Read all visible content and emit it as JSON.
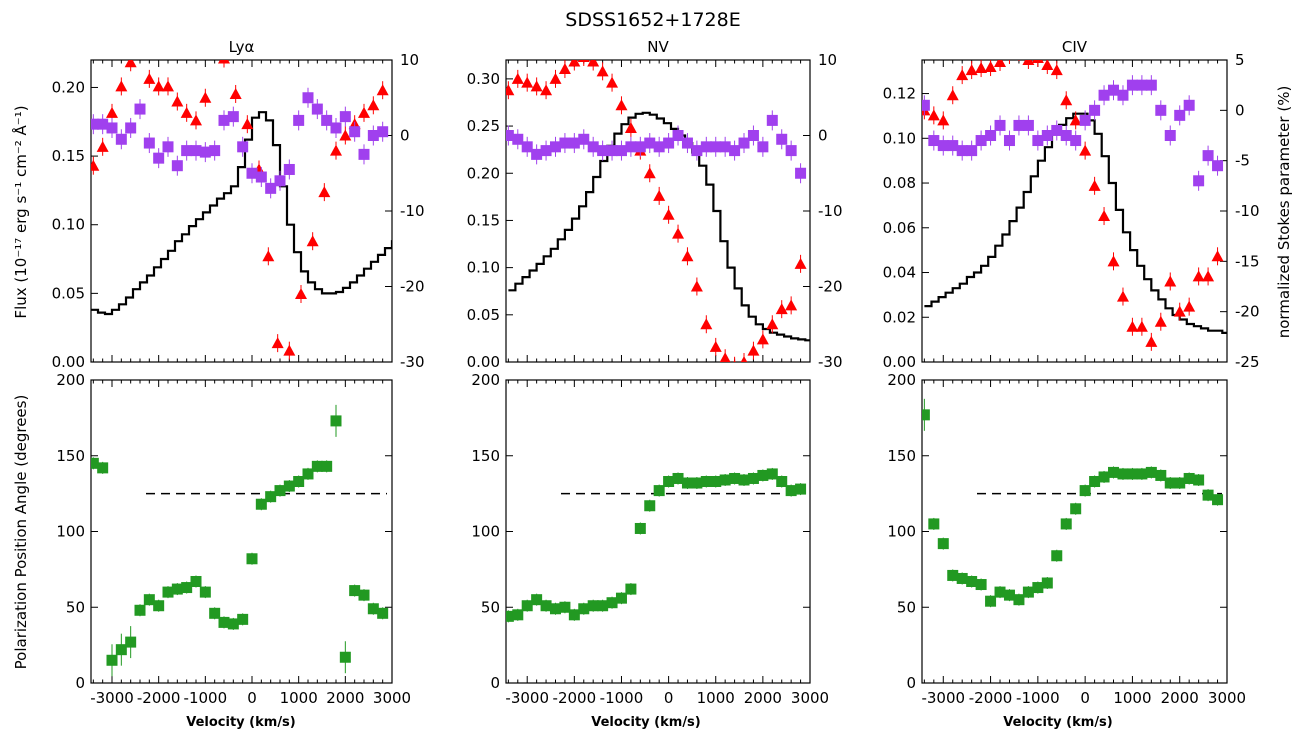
{
  "figure": {
    "title": "SDSS1652+1728E",
    "left_ylabel_flux": "Flux (10⁻¹⁷ erg s⁻¹ cm⁻² Å⁻¹)",
    "left_ylabel_pa": "Polarization Position Angle (degrees)",
    "right_ylabel": "normalized Stokes parameter (%)",
    "xlabel": "Velocity (km/s)"
  },
  "colors": {
    "stokes_q": "#ff0000",
    "stokes_u": "#a040ee",
    "angle": "#229922",
    "flux": "#000000"
  },
  "chart_data": [
    {
      "type": "line",
      "panel": "flux-lya",
      "title": "Lyα",
      "xlim": [
        -3450,
        3000
      ],
      "ylim": [
        0,
        0.22
      ],
      "y2lim": [
        -30,
        10
      ],
      "xticks": [
        -3000,
        -2000,
        -1000,
        0,
        1000,
        2000,
        3000
      ],
      "xticklabels": [
        "-3000",
        "-2000",
        "-1000",
        "0",
        "1000",
        "2000",
        "3000"
      ],
      "yticks": [
        0,
        0.05,
        0.1,
        0.15,
        0.2
      ],
      "yticklabels": [
        "0.00",
        "0.05",
        "0.10",
        "0.15",
        "0.20"
      ],
      "y2ticks": [
        -30,
        -20,
        -10,
        0,
        10
      ],
      "y2ticklabels": [
        "-30",
        "-20",
        "-10",
        "0",
        "10"
      ],
      "flux": {
        "x": [
          -3450,
          -3300,
          -3150,
          -3000,
          -2850,
          -2700,
          -2550,
          -2400,
          -2250,
          -2100,
          -1950,
          -1800,
          -1650,
          -1500,
          -1350,
          -1200,
          -1050,
          -900,
          -750,
          -600,
          -450,
          -300,
          -150,
          0,
          150,
          300,
          450,
          600,
          750,
          900,
          1050,
          1200,
          1350,
          1500,
          1650,
          1800,
          1950,
          2100,
          2250,
          2400,
          2550,
          2700,
          2850,
          3000
        ],
        "y": [
          0.038,
          0.036,
          0.035,
          0.038,
          0.042,
          0.047,
          0.053,
          0.058,
          0.063,
          0.069,
          0.075,
          0.081,
          0.088,
          0.093,
          0.099,
          0.104,
          0.109,
          0.114,
          0.119,
          0.123,
          0.128,
          0.142,
          0.162,
          0.178,
          0.182,
          0.176,
          0.158,
          0.128,
          0.1,
          0.08,
          0.066,
          0.058,
          0.053,
          0.05,
          0.05,
          0.051,
          0.054,
          0.058,
          0.063,
          0.068,
          0.073,
          0.078,
          0.083,
          0.088
        ]
      },
      "stokes_q": {
        "x": [
          -3400,
          -3200,
          -3000,
          -2800,
          -2600,
          -2400,
          -2200,
          -2000,
          -1800,
          -1600,
          -1400,
          -1200,
          -1000,
          -600,
          -350,
          -100,
          150,
          350,
          550,
          800,
          1050,
          1300,
          1550,
          1800,
          2000,
          2200,
          2400,
          2600,
          2800
        ],
        "y": [
          -4,
          -1.5,
          3,
          6.5,
          9.7,
          12,
          7.5,
          6.5,
          6.5,
          4.5,
          3,
          2,
          5,
          10.2,
          5.5,
          1.5,
          -4.5,
          -16,
          -27.5,
          -28.5,
          -21,
          -14,
          -7.5,
          -2,
          0,
          1.5,
          3,
          4,
          6
        ]
      },
      "stokes_u": {
        "x": [
          -3400,
          -3200,
          -3000,
          -2800,
          -2600,
          -2400,
          -2200,
          -2000,
          -1800,
          -1600,
          -1400,
          -1200,
          -1000,
          -800,
          -600,
          -400,
          -200,
          0,
          200,
          400,
          600,
          800,
          1000,
          1200,
          1400,
          1600,
          1800,
          2000,
          2200,
          2400,
          2600,
          2800
        ],
        "y": [
          1.5,
          1.5,
          1,
          -0.5,
          1,
          3.5,
          -1,
          -3,
          -1.5,
          -4,
          -2,
          -2,
          -2.2,
          -2,
          2,
          2.5,
          -1.5,
          -5,
          -5.5,
          -7,
          -6,
          -4.5,
          2,
          5,
          3.5,
          2,
          1,
          2.5,
          0.5,
          -2.5,
          0,
          0.5
        ]
      },
      "ref_line": null
    },
    {
      "type": "line",
      "panel": "flux-nv",
      "title": "NV",
      "xlim": [
        -3450,
        3000
      ],
      "ylim": [
        0,
        0.32
      ],
      "y2lim": [
        -30,
        10
      ],
      "xticks": [
        -3000,
        -2000,
        -1000,
        0,
        1000,
        2000,
        3000
      ],
      "xticklabels": [
        "-3000",
        "-2000",
        "-1000",
        "0",
        "1000",
        "2000",
        "3000"
      ],
      "yticks": [
        0,
        0.05,
        0.1,
        0.15,
        0.2,
        0.25,
        0.3
      ],
      "yticklabels": [
        "0.00",
        "0.05",
        "0.10",
        "0.15",
        "0.20",
        "0.25",
        "0.30"
      ],
      "y2ticks": [
        -30,
        -20,
        -10,
        0,
        10
      ],
      "y2ticklabels": [
        "-30",
        "-20",
        "-10",
        "0",
        "10"
      ],
      "flux": {
        "x": [
          -3400,
          -3250,
          -3100,
          -2950,
          -2800,
          -2650,
          -2500,
          -2350,
          -2200,
          -2050,
          -1900,
          -1750,
          -1600,
          -1450,
          -1300,
          -1150,
          -1000,
          -850,
          -700,
          -550,
          -400,
          -250,
          -100,
          50,
          200,
          350,
          500,
          650,
          800,
          950,
          1100,
          1250,
          1400,
          1550,
          1700,
          1850,
          2000,
          2150,
          2300,
          2450,
          2600,
          2750,
          2900,
          3000
        ],
        "y": [
          0.076,
          0.083,
          0.09,
          0.097,
          0.104,
          0.112,
          0.12,
          0.13,
          0.14,
          0.152,
          0.165,
          0.18,
          0.196,
          0.213,
          0.229,
          0.242,
          0.252,
          0.259,
          0.263,
          0.264,
          0.262,
          0.258,
          0.253,
          0.247,
          0.24,
          0.232,
          0.222,
          0.208,
          0.188,
          0.16,
          0.128,
          0.1,
          0.078,
          0.06,
          0.048,
          0.04,
          0.035,
          0.031,
          0.029,
          0.027,
          0.025,
          0.024,
          0.023,
          0.023
        ]
      },
      "stokes_q": {
        "x": [
          -3400,
          -3200,
          -3000,
          -2800,
          -2600,
          -2400,
          -2200,
          -2000,
          -1800,
          -1600,
          -1400,
          -1200,
          -1000,
          -800,
          -600,
          -400,
          -200,
          0,
          200,
          400,
          600,
          800,
          1000,
          1200,
          1400,
          1600,
          1800,
          2000,
          2200,
          2400,
          2600,
          2800
        ],
        "y": [
          6,
          7.5,
          7,
          6.5,
          6,
          7.5,
          8.8,
          9.8,
          10.4,
          9.8,
          8.5,
          7,
          4,
          1,
          -2,
          -5,
          -8,
          -10.5,
          -13,
          -16,
          -20,
          -25,
          -28,
          -29.5,
          -30.5,
          -30,
          -28.5,
          -27,
          -25,
          -23,
          -22.5,
          -17
        ]
      },
      "stokes_u": {
        "x": [
          -3400,
          -3200,
          -3000,
          -2800,
          -2600,
          -2400,
          -2200,
          -2000,
          -1800,
          -1600,
          -1400,
          -1200,
          -1000,
          -800,
          -600,
          -400,
          -200,
          0,
          200,
          400,
          600,
          800,
          1000,
          1200,
          1400,
          1600,
          1800,
          2000,
          2200,
          2400,
          2600,
          2800
        ],
        "y": [
          0,
          -0.5,
          -1.5,
          -2.5,
          -2,
          -1.5,
          -1,
          -1,
          -0.5,
          -1.5,
          -2,
          -2,
          -2,
          -1.5,
          -1.5,
          -1,
          -1.5,
          -1,
          0,
          -1,
          -2,
          -1.5,
          -1.5,
          -1.5,
          -2,
          -1,
          0,
          -1.5,
          2,
          -0.5,
          -2,
          -5
        ]
      },
      "ref_line": null
    },
    {
      "type": "line",
      "panel": "flux-civ",
      "title": "CIV",
      "xlim": [
        -3450,
        3000
      ],
      "ylim": [
        0,
        0.135
      ],
      "y2lim": [
        -25,
        5
      ],
      "xticks": [
        -3000,
        -2000,
        -1000,
        0,
        1000,
        2000,
        3000
      ],
      "xticklabels": [
        "-3000",
        "-2000",
        "-1000",
        "0",
        "1000",
        "2000",
        "3000"
      ],
      "yticks": [
        0,
        0.02,
        0.04,
        0.06,
        0.08,
        0.1,
        0.12
      ],
      "yticklabels": [
        "0.00",
        "0.02",
        "0.04",
        "0.06",
        "0.08",
        "0.10",
        "0.12"
      ],
      "y2ticks": [
        -25,
        -20,
        -15,
        -10,
        -5,
        0,
        5
      ],
      "y2ticklabels": [
        "-25",
        "-20",
        "-15",
        "-10",
        "-5",
        "0",
        "5"
      ],
      "flux": {
        "x": [
          -3400,
          -3250,
          -3100,
          -2950,
          -2800,
          -2650,
          -2500,
          -2350,
          -2200,
          -2050,
          -1900,
          -1750,
          -1600,
          -1450,
          -1300,
          -1150,
          -1000,
          -850,
          -700,
          -550,
          -400,
          -250,
          -100,
          50,
          200,
          350,
          500,
          650,
          800,
          950,
          1100,
          1250,
          1400,
          1550,
          1700,
          1850,
          2000,
          2150,
          2300,
          2450,
          2600,
          2750,
          2900,
          3000
        ],
        "y": [
          0.025,
          0.027,
          0.029,
          0.031,
          0.033,
          0.035,
          0.038,
          0.04,
          0.043,
          0.047,
          0.052,
          0.057,
          0.063,
          0.069,
          0.076,
          0.083,
          0.09,
          0.096,
          0.102,
          0.106,
          0.109,
          0.111,
          0.111,
          0.108,
          0.102,
          0.092,
          0.08,
          0.068,
          0.058,
          0.05,
          0.043,
          0.037,
          0.032,
          0.028,
          0.024,
          0.021,
          0.019,
          0.017,
          0.016,
          0.015,
          0.014,
          0.014,
          0.013,
          0.013
        ]
      },
      "stokes_q": {
        "x": [
          -3400,
          -3200,
          -3000,
          -2800,
          -2600,
          -2400,
          -2200,
          -2000,
          -1800,
          -1600,
          -1400,
          -1200,
          -1000,
          -800,
          -600,
          -400,
          -200,
          0,
          200,
          400,
          600,
          800,
          1000,
          1200,
          1400,
          1600,
          1800,
          2000,
          2200,
          2400,
          2600,
          2800
        ],
        "y": [
          0,
          -0.5,
          -1,
          1.5,
          3.5,
          4,
          4.2,
          4.3,
          4.8,
          5.5,
          5.8,
          5,
          5.2,
          4.5,
          4,
          1,
          -1,
          -4,
          -7.5,
          -10.5,
          -15,
          -18.5,
          -21.5,
          -21.5,
          -23,
          -21,
          -17,
          -20,
          -19.5,
          -16.5,
          -16.5,
          -14.5
        ]
      },
      "stokes_u": {
        "x": [
          -3400,
          -3200,
          -3000,
          -2800,
          -2600,
          -2400,
          -2200,
          -2000,
          -1800,
          -1600,
          -1400,
          -1200,
          -1000,
          -800,
          -600,
          -400,
          -200,
          0,
          200,
          400,
          600,
          800,
          1000,
          1200,
          1400,
          1600,
          1800,
          2000,
          2200,
          2400,
          2600,
          2800
        ],
        "y": [
          0.5,
          -3,
          -3.5,
          -3.5,
          -4,
          -4,
          -3,
          -2.5,
          -1.5,
          -3,
          -1.5,
          -1.5,
          -3,
          -2.5,
          -2,
          -2.5,
          -3,
          -1,
          0,
          1.5,
          2,
          1.5,
          2.5,
          2.5,
          2.5,
          0,
          -2.5,
          -0.5,
          0.5,
          -7,
          -4.5,
          -5.5
        ]
      },
      "ref_line": null
    },
    {
      "type": "scatter",
      "panel": "angle-lya",
      "xlim": [
        -3450,
        3000
      ],
      "ylim": [
        0,
        200
      ],
      "xticks": [
        -3000,
        -2000,
        -1000,
        0,
        1000,
        2000,
        3000
      ],
      "xticklabels": [
        "-3000",
        "-2000",
        "-1000",
        "0",
        "1000",
        "2000",
        "3000"
      ],
      "yticks": [
        0,
        50,
        100,
        150,
        200
      ],
      "yticklabels": [
        "0",
        "50",
        "100",
        "150",
        "200"
      ],
      "angle": {
        "x": [
          -3400,
          -3200,
          -3000,
          -2800,
          -2600,
          -2400,
          -2200,
          -2000,
          -1800,
          -1600,
          -1400,
          -1200,
          -1000,
          -800,
          -600,
          -400,
          -200,
          0,
          200,
          400,
          600,
          800,
          1000,
          1200,
          1400,
          1600,
          1800,
          2000,
          2200,
          2400,
          2600,
          2800
        ],
        "y": [
          145,
          142,
          15,
          22,
          27,
          48,
          55,
          51,
          60,
          62,
          63,
          67,
          60,
          46,
          40,
          39,
          42,
          82,
          118,
          123,
          127,
          130,
          133,
          138,
          143,
          143,
          173,
          17,
          61,
          58,
          49,
          46
        ]
      },
      "ref_line": 125
    },
    {
      "type": "scatter",
      "panel": "angle-nv",
      "xlim": [
        -3450,
        3000
      ],
      "ylim": [
        0,
        200
      ],
      "xticks": [
        -3000,
        -2000,
        -1000,
        0,
        1000,
        2000,
        3000
      ],
      "xticklabels": [
        "-3000",
        "-2000",
        "-1000",
        "0",
        "1000",
        "2000",
        "3000"
      ],
      "yticks": [
        0,
        50,
        100,
        150,
        200
      ],
      "yticklabels": [
        "0",
        "50",
        "100",
        "150",
        "200"
      ],
      "angle": {
        "x": [
          -3400,
          -3200,
          -3000,
          -2800,
          -2600,
          -2400,
          -2200,
          -2000,
          -1800,
          -1600,
          -1400,
          -1200,
          -1000,
          -800,
          -600,
          -400,
          -200,
          0,
          200,
          400,
          600,
          800,
          1000,
          1200,
          1400,
          1600,
          1800,
          2000,
          2200,
          2400,
          2600,
          2800
        ],
        "y": [
          44,
          45,
          51,
          55,
          51,
          49,
          50,
          45,
          49,
          51,
          51,
          53,
          56,
          62,
          102,
          117,
          127,
          133,
          135,
          132,
          132,
          133,
          133,
          134,
          135,
          134,
          135,
          137,
          138,
          133,
          127,
          128
        ]
      },
      "ref_line": 125
    },
    {
      "type": "scatter",
      "panel": "angle-civ",
      "xlim": [
        -3450,
        3000
      ],
      "ylim": [
        0,
        200
      ],
      "xticks": [
        -3000,
        -2000,
        -1000,
        0,
        1000,
        2000,
        3000
      ],
      "xticklabels": [
        "-3000",
        "-2000",
        "-1000",
        "0",
        "1000",
        "2000",
        "3000"
      ],
      "yticks": [
        0,
        50,
        100,
        150,
        200
      ],
      "yticklabels": [
        "0",
        "50",
        "100",
        "150",
        "200"
      ],
      "angle": {
        "x": [
          -3400,
          -3200,
          -3000,
          -2800,
          -2600,
          -2400,
          -2200,
          -2000,
          -1800,
          -1600,
          -1400,
          -1200,
          -1000,
          -800,
          -600,
          -400,
          -200,
          0,
          200,
          400,
          600,
          800,
          1000,
          1200,
          1400,
          1600,
          1800,
          2000,
          2200,
          2400,
          2600,
          2800
        ],
        "y": [
          177,
          105,
          92,
          71,
          69,
          67,
          65,
          54,
          60,
          58,
          55,
          60,
          63,
          66,
          84,
          105,
          115,
          127,
          133,
          136,
          139,
          138,
          138,
          138,
          139,
          137,
          132,
          132,
          135,
          134,
          124,
          121
        ]
      },
      "ref_line": 125
    }
  ]
}
